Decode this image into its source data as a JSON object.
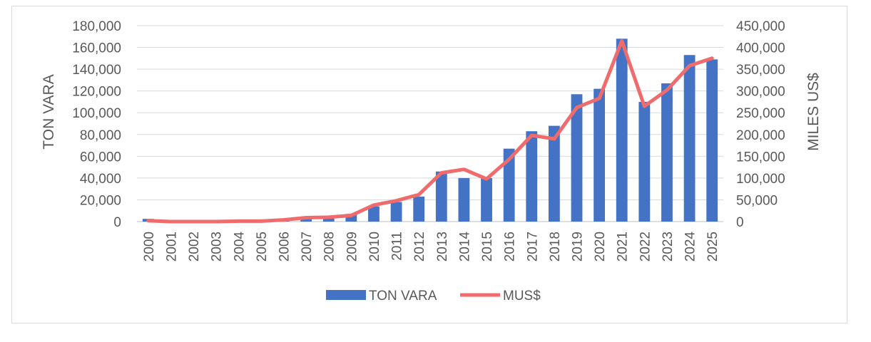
{
  "chart_data": {
    "type": "bar+line",
    "categories": [
      "2000",
      "2001",
      "2002",
      "2003",
      "2004",
      "2005",
      "2006",
      "2007",
      "2008",
      "2009",
      "2010",
      "2011",
      "2012",
      "2013",
      "2014",
      "2015",
      "2016",
      "2017",
      "2018",
      "2019",
      "2020",
      "2021",
      "2022",
      "2023",
      "2024",
      "2025"
    ],
    "series": [
      {
        "name": "TON VARA",
        "type": "bar",
        "axis": "left",
        "color": "#4472C4",
        "values": [
          2500,
          700,
          500,
          600,
          1000,
          1000,
          2000,
          4000,
          5000,
          7000,
          14000,
          18000,
          23000,
          46000,
          40000,
          40000,
          67000,
          83000,
          88000,
          117000,
          122000,
          168000,
          110000,
          127000,
          153000,
          149000
        ]
      },
      {
        "name": "MUS$",
        "type": "line",
        "axis": "right",
        "color": "#F06C6C",
        "values": [
          2000,
          0,
          0,
          0,
          1000,
          1000,
          4000,
          9000,
          10000,
          14000,
          38000,
          48000,
          62000,
          112000,
          120000,
          98000,
          143000,
          198000,
          190000,
          262000,
          283000,
          415000,
          265000,
          302000,
          358000,
          375000
        ]
      }
    ],
    "y_left": {
      "label": "TON VARA",
      "min": 0,
      "max": 180000,
      "step": 20000,
      "tick_labels": [
        "0",
        "20,000",
        "40,000",
        "60,000",
        "80,000",
        "100,000",
        "120,000",
        "140,000",
        "160,000",
        "180,000"
      ]
    },
    "y_right": {
      "label": "MILES US$",
      "min": 0,
      "max": 450000,
      "step": 50000,
      "tick_labels": [
        "0",
        "50,000",
        "100,000",
        "150,000",
        "200,000",
        "250,000",
        "300,000",
        "350,000",
        "400,000",
        "450,000"
      ]
    },
    "grid": true,
    "legend": {
      "position": "bottom",
      "entries": [
        "TON VARA",
        "MUS$"
      ]
    }
  }
}
